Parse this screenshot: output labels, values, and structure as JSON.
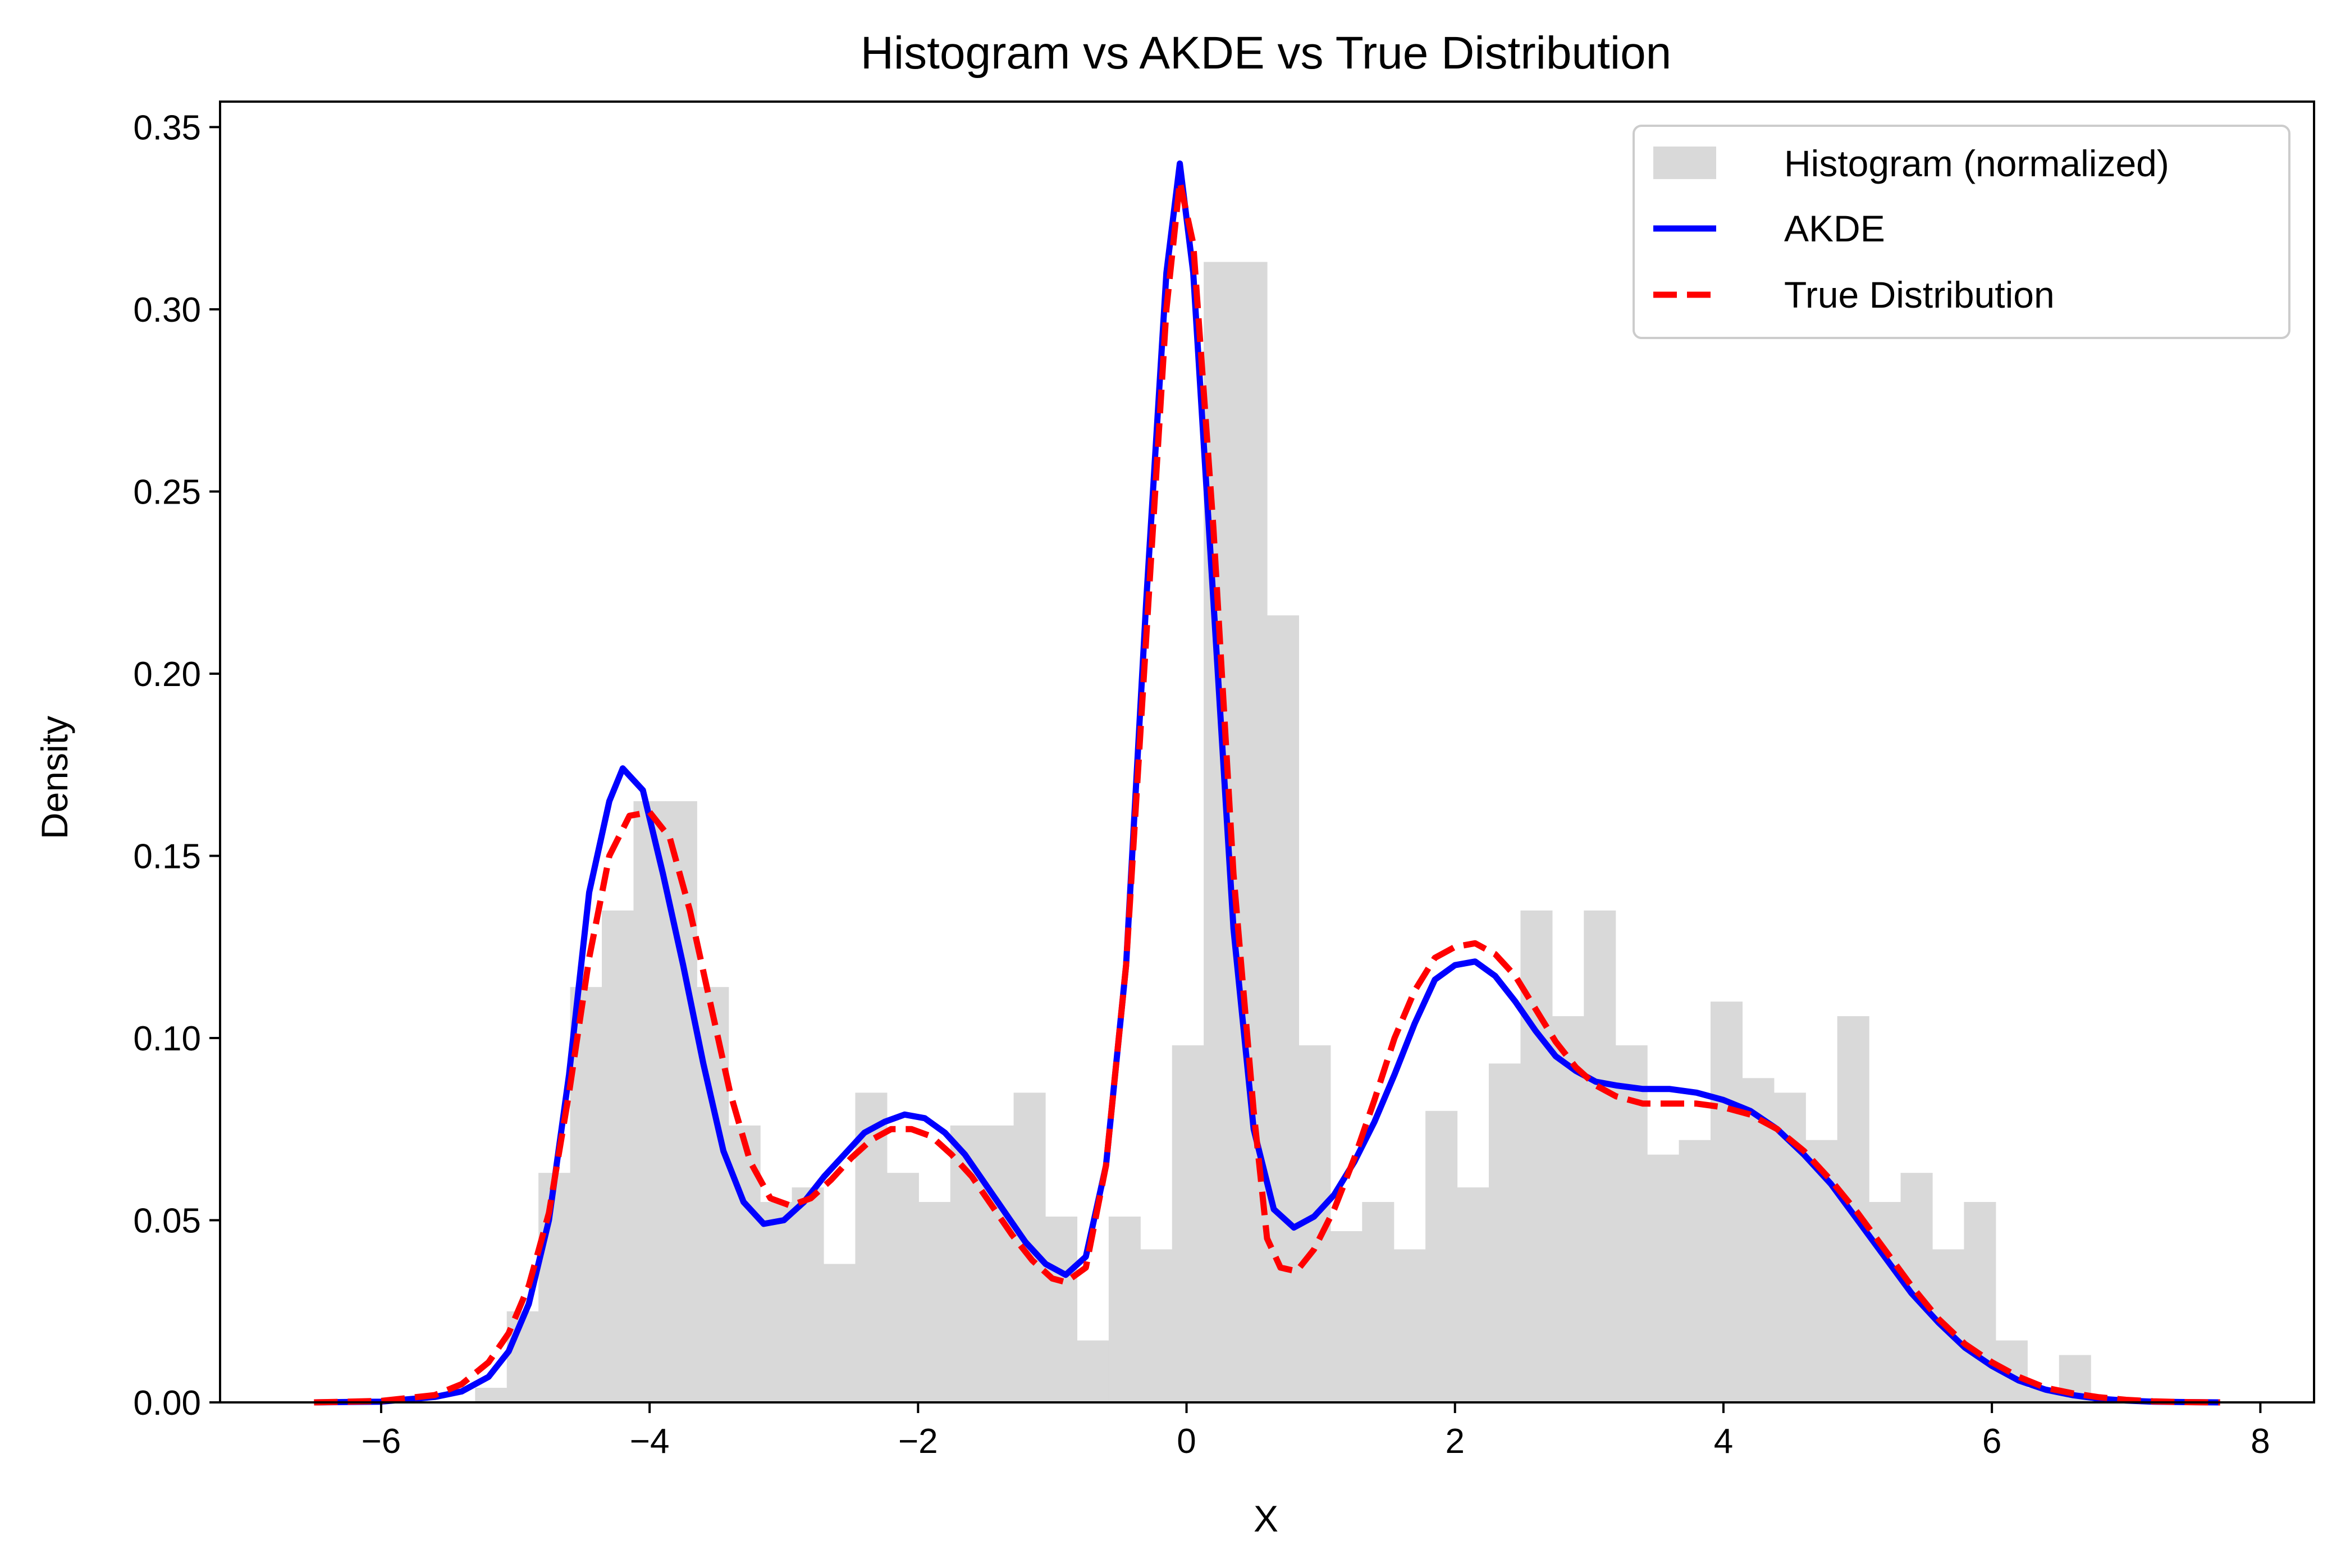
{
  "chart_data": {
    "type": "histogram + line",
    "title": "Histogram vs AKDE vs True Distribution",
    "xlabel": "X",
    "ylabel": "Density",
    "xlim": [
      -7.2,
      8.4
    ],
    "ylim": [
      0,
      0.357
    ],
    "x_ticks": [
      -6,
      -4,
      -2,
      0,
      2,
      4,
      6,
      8
    ],
    "x_tick_labels": [
      "−6",
      "−4",
      "−2",
      "0",
      "2",
      "4",
      "6",
      "8"
    ],
    "y_ticks": [
      0.0,
      0.05,
      0.1,
      0.15,
      0.2,
      0.25,
      0.3,
      0.35
    ],
    "y_tick_labels": [
      "0.00",
      "0.05",
      "0.10",
      "0.15",
      "0.20",
      "0.25",
      "0.30",
      "0.35"
    ],
    "legend_position": "top-right",
    "grid": false,
    "histogram": {
      "name": "Histogram (normalized)",
      "color": "#d9d9d9",
      "bin_start": -5.3,
      "bin_width": 0.236,
      "densities": [
        0.004,
        0.025,
        0.063,
        0.114,
        0.135,
        0.165,
        0.165,
        0.114,
        0.076,
        0.055,
        0.059,
        0.038,
        0.085,
        0.063,
        0.055,
        0.076,
        0.076,
        0.085,
        0.051,
        0.017,
        0.051,
        0.042,
        0.098,
        0.313,
        0.313,
        0.216,
        0.098,
        0.047,
        0.055,
        0.042,
        0.08,
        0.059,
        0.093,
        0.135,
        0.106,
        0.135,
        0.098,
        0.068,
        0.072,
        0.11,
        0.089,
        0.085,
        0.072,
        0.106,
        0.055,
        0.063,
        0.042,
        0.055,
        0.017,
        0.004,
        0.013
      ]
    },
    "series": [
      {
        "name": "AKDE",
        "color": "#0000ff",
        "dashed": false,
        "x": [
          -6.5,
          -6.0,
          -5.6,
          -5.4,
          -5.2,
          -5.05,
          -4.9,
          -4.75,
          -4.6,
          -4.45,
          -4.3,
          -4.2,
          -4.05,
          -3.9,
          -3.75,
          -3.6,
          -3.45,
          -3.3,
          -3.15,
          -3.0,
          -2.85,
          -2.7,
          -2.55,
          -2.4,
          -2.25,
          -2.1,
          -1.95,
          -1.8,
          -1.65,
          -1.5,
          -1.35,
          -1.2,
          -1.05,
          -0.9,
          -0.75,
          -0.6,
          -0.45,
          -0.3,
          -0.15,
          -0.05,
          0.05,
          0.2,
          0.35,
          0.5,
          0.65,
          0.8,
          0.95,
          1.1,
          1.25,
          1.4,
          1.55,
          1.7,
          1.85,
          2.0,
          2.15,
          2.3,
          2.45,
          2.6,
          2.75,
          2.9,
          3.05,
          3.2,
          3.4,
          3.6,
          3.8,
          4.0,
          4.2,
          4.4,
          4.6,
          4.8,
          5.0,
          5.2,
          5.4,
          5.6,
          5.8,
          6.0,
          6.2,
          6.4,
          6.6,
          6.8,
          7.0,
          7.2,
          7.4,
          7.7
        ],
        "y": [
          0.0,
          0.0002,
          0.0015,
          0.003,
          0.007,
          0.014,
          0.027,
          0.05,
          0.09,
          0.14,
          0.165,
          0.174,
          0.168,
          0.145,
          0.12,
          0.093,
          0.069,
          0.055,
          0.049,
          0.05,
          0.055,
          0.062,
          0.068,
          0.074,
          0.077,
          0.079,
          0.078,
          0.074,
          0.068,
          0.06,
          0.052,
          0.044,
          0.038,
          0.035,
          0.04,
          0.065,
          0.12,
          0.22,
          0.31,
          0.34,
          0.31,
          0.22,
          0.13,
          0.075,
          0.053,
          0.048,
          0.051,
          0.057,
          0.066,
          0.077,
          0.09,
          0.104,
          0.116,
          0.12,
          0.121,
          0.117,
          0.11,
          0.102,
          0.095,
          0.091,
          0.088,
          0.087,
          0.086,
          0.086,
          0.085,
          0.083,
          0.08,
          0.075,
          0.068,
          0.06,
          0.05,
          0.04,
          0.03,
          0.022,
          0.015,
          0.01,
          0.006,
          0.0035,
          0.002,
          0.001,
          0.0005,
          0.0002,
          0.0001,
          0.0
        ]
      },
      {
        "name": "True Distribution",
        "color": "#ff0000",
        "dashed": true,
        "x": [
          -6.5,
          -6.0,
          -5.6,
          -5.4,
          -5.2,
          -5.05,
          -4.9,
          -4.75,
          -4.6,
          -4.45,
          -4.3,
          -4.15,
          -4.0,
          -3.85,
          -3.7,
          -3.55,
          -3.4,
          -3.25,
          -3.1,
          -2.95,
          -2.8,
          -2.65,
          -2.5,
          -2.35,
          -2.2,
          -2.05,
          -1.9,
          -1.75,
          -1.6,
          -1.45,
          -1.3,
          -1.15,
          -1.0,
          -0.9,
          -0.75,
          -0.6,
          -0.45,
          -0.3,
          -0.15,
          -0.05,
          0.05,
          0.2,
          0.35,
          0.5,
          0.6,
          0.7,
          0.82,
          0.95,
          1.1,
          1.25,
          1.4,
          1.55,
          1.7,
          1.85,
          2.0,
          2.15,
          2.3,
          2.45,
          2.6,
          2.75,
          2.9,
          3.05,
          3.2,
          3.4,
          3.6,
          3.8,
          4.0,
          4.2,
          4.4,
          4.6,
          4.8,
          5.0,
          5.2,
          5.4,
          5.6,
          5.8,
          6.0,
          6.2,
          6.4,
          6.6,
          6.8,
          7.0,
          7.2,
          7.4,
          7.7
        ],
        "y": [
          0.0,
          0.0004,
          0.002,
          0.005,
          0.011,
          0.019,
          0.032,
          0.052,
          0.085,
          0.122,
          0.15,
          0.161,
          0.162,
          0.155,
          0.135,
          0.11,
          0.085,
          0.066,
          0.056,
          0.054,
          0.056,
          0.061,
          0.067,
          0.072,
          0.075,
          0.075,
          0.073,
          0.068,
          0.062,
          0.054,
          0.046,
          0.039,
          0.034,
          0.033,
          0.037,
          0.065,
          0.12,
          0.21,
          0.3,
          0.335,
          0.318,
          0.24,
          0.145,
          0.08,
          0.045,
          0.037,
          0.036,
          0.042,
          0.053,
          0.067,
          0.083,
          0.1,
          0.113,
          0.122,
          0.125,
          0.126,
          0.123,
          0.117,
          0.108,
          0.099,
          0.092,
          0.087,
          0.084,
          0.082,
          0.082,
          0.082,
          0.081,
          0.079,
          0.075,
          0.069,
          0.061,
          0.052,
          0.042,
          0.032,
          0.023,
          0.016,
          0.011,
          0.007,
          0.004,
          0.0025,
          0.0014,
          0.0007,
          0.0003,
          0.0001,
          0.0
        ]
      }
    ]
  }
}
